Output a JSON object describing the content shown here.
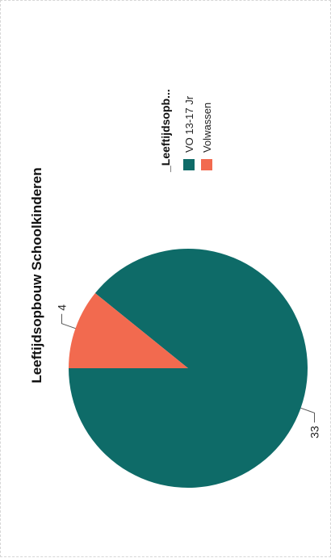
{
  "chart_data": {
    "type": "pie",
    "title": "Leeftijdsopbouw Schoolkinderen",
    "legend_title": "_Leeftijdsopb...",
    "legend_placement": "right",
    "orientation": "rotated-90-counterclockwise",
    "slices": [
      {
        "label": "VO 13-17 Jr",
        "value": 33,
        "color": "#0e6b68"
      },
      {
        "label": "Volwassen",
        "value": 4,
        "color": "#f26a4f"
      }
    ]
  }
}
